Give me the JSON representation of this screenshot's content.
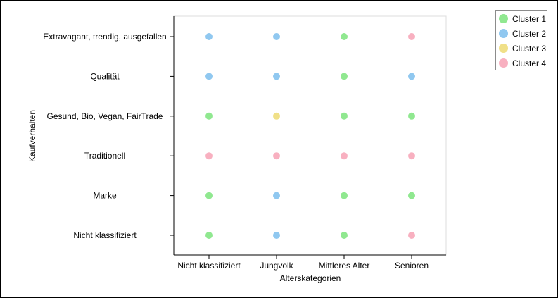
{
  "chart_data": {
    "type": "scatter",
    "xlabel": "Alterskategorien",
    "ylabel": "Kaufverhalten",
    "x_categories": [
      "Nicht klassifiziert",
      "Jungvolk",
      "Mittleres Alter",
      "Senioren"
    ],
    "y_categories": [
      "Nicht klassifiziert",
      "Marke",
      "Traditionell",
      "Gesund, Bio, Vegan, FairTrade",
      "Qualität",
      "Extravagant, trendig, ausgefallen"
    ],
    "legend_position": "top-right",
    "grid": false,
    "series": [
      {
        "name": "Cluster 1",
        "color": "#90e890",
        "points": [
          {
            "x": "Mittleres Alter",
            "y": "Extravagant, trendig, ausgefallen"
          },
          {
            "x": "Mittleres Alter",
            "y": "Qualität"
          },
          {
            "x": "Nicht klassifiziert",
            "y": "Gesund, Bio, Vegan, FairTrade"
          },
          {
            "x": "Mittleres Alter",
            "y": "Gesund, Bio, Vegan, FairTrade"
          },
          {
            "x": "Senioren",
            "y": "Gesund, Bio, Vegan, FairTrade"
          },
          {
            "x": "Nicht klassifiziert",
            "y": "Marke"
          },
          {
            "x": "Mittleres Alter",
            "y": "Marke"
          },
          {
            "x": "Senioren",
            "y": "Marke"
          },
          {
            "x": "Nicht klassifiziert",
            "y": "Nicht klassifiziert"
          },
          {
            "x": "Mittleres Alter",
            "y": "Nicht klassifiziert"
          }
        ]
      },
      {
        "name": "Cluster 2",
        "color": "#90c8f0",
        "points": [
          {
            "x": "Nicht klassifiziert",
            "y": "Extravagant, trendig, ausgefallen"
          },
          {
            "x": "Jungvolk",
            "y": "Extravagant, trendig, ausgefallen"
          },
          {
            "x": "Nicht klassifiziert",
            "y": "Qualität"
          },
          {
            "x": "Jungvolk",
            "y": "Qualität"
          },
          {
            "x": "Senioren",
            "y": "Qualität"
          },
          {
            "x": "Jungvolk",
            "y": "Marke"
          },
          {
            "x": "Jungvolk",
            "y": "Nicht klassifiziert"
          }
        ]
      },
      {
        "name": "Cluster 3",
        "color": "#f0e088",
        "points": [
          {
            "x": "Jungvolk",
            "y": "Gesund, Bio, Vegan, FairTrade"
          }
        ]
      },
      {
        "name": "Cluster 4",
        "color": "#f8b0c0",
        "points": [
          {
            "x": "Senioren",
            "y": "Extravagant, trendig, ausgefallen"
          },
          {
            "x": "Nicht klassifiziert",
            "y": "Traditionell"
          },
          {
            "x": "Jungvolk",
            "y": "Traditionell"
          },
          {
            "x": "Mittleres Alter",
            "y": "Traditionell"
          },
          {
            "x": "Senioren",
            "y": "Traditionell"
          },
          {
            "x": "Senioren",
            "y": "Nicht klassifiziert"
          }
        ]
      }
    ]
  }
}
